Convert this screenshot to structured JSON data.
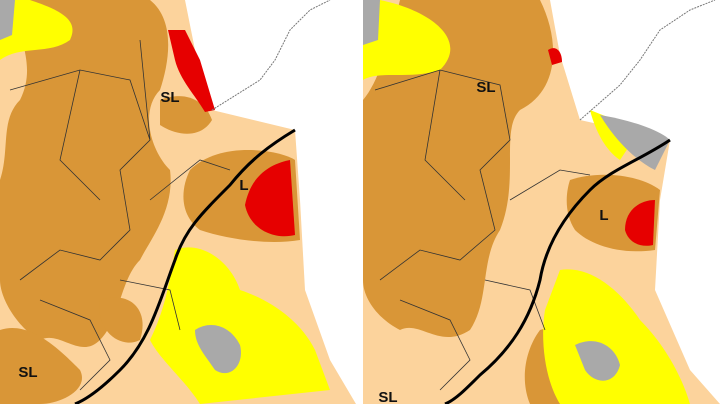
{
  "left_map": {
    "labels": [
      "SL",
      "L",
      "SL"
    ]
  },
  "right_map": {
    "labels": [
      "SL",
      "L",
      "SL"
    ]
  }
}
